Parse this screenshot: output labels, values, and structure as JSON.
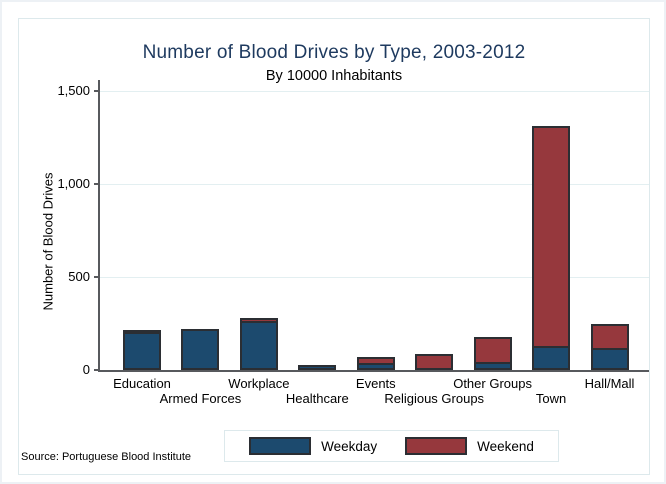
{
  "chart_data": {
    "type": "bar",
    "stacked": true,
    "title": "Number of Blood Drives by Type, 2003-2012",
    "subtitle": "By 10000 Inhabitants",
    "ylabel": "Number of Blood Drives",
    "xlabel": "",
    "ylim": [
      0,
      1500
    ],
    "yticks": [
      0,
      500,
      1000,
      1500
    ],
    "ytick_labels": [
      "0",
      "500",
      "1,000",
      "1,500"
    ],
    "grid": true,
    "legend_position": "bottom",
    "categories": [
      "Education",
      "Armed Forces",
      "Workplace",
      "Healthcare",
      "Events",
      "Religious Groups",
      "Other Groups",
      "Town",
      "Hall/Mall"
    ],
    "series": [
      {
        "name": "Weekday",
        "color": "#1c4a6e",
        "values": [
          195,
          220,
          255,
          25,
          25,
          0,
          35,
          120,
          105
        ]
      },
      {
        "name": "Weekend",
        "color": "#96383d",
        "values": [
          20,
          0,
          25,
          0,
          45,
          85,
          145,
          1190,
          140
        ]
      }
    ],
    "source_note": "Source: Portuguese Blood Institute"
  },
  "colors": {
    "weekday": "#1c4a6e",
    "weekend": "#96383d",
    "bar_outline": "#2b2e33",
    "axis": "#57595d",
    "gridline": "#e3eff1",
    "title": "#1e3a5f",
    "frame_border": "#dde9ec"
  }
}
